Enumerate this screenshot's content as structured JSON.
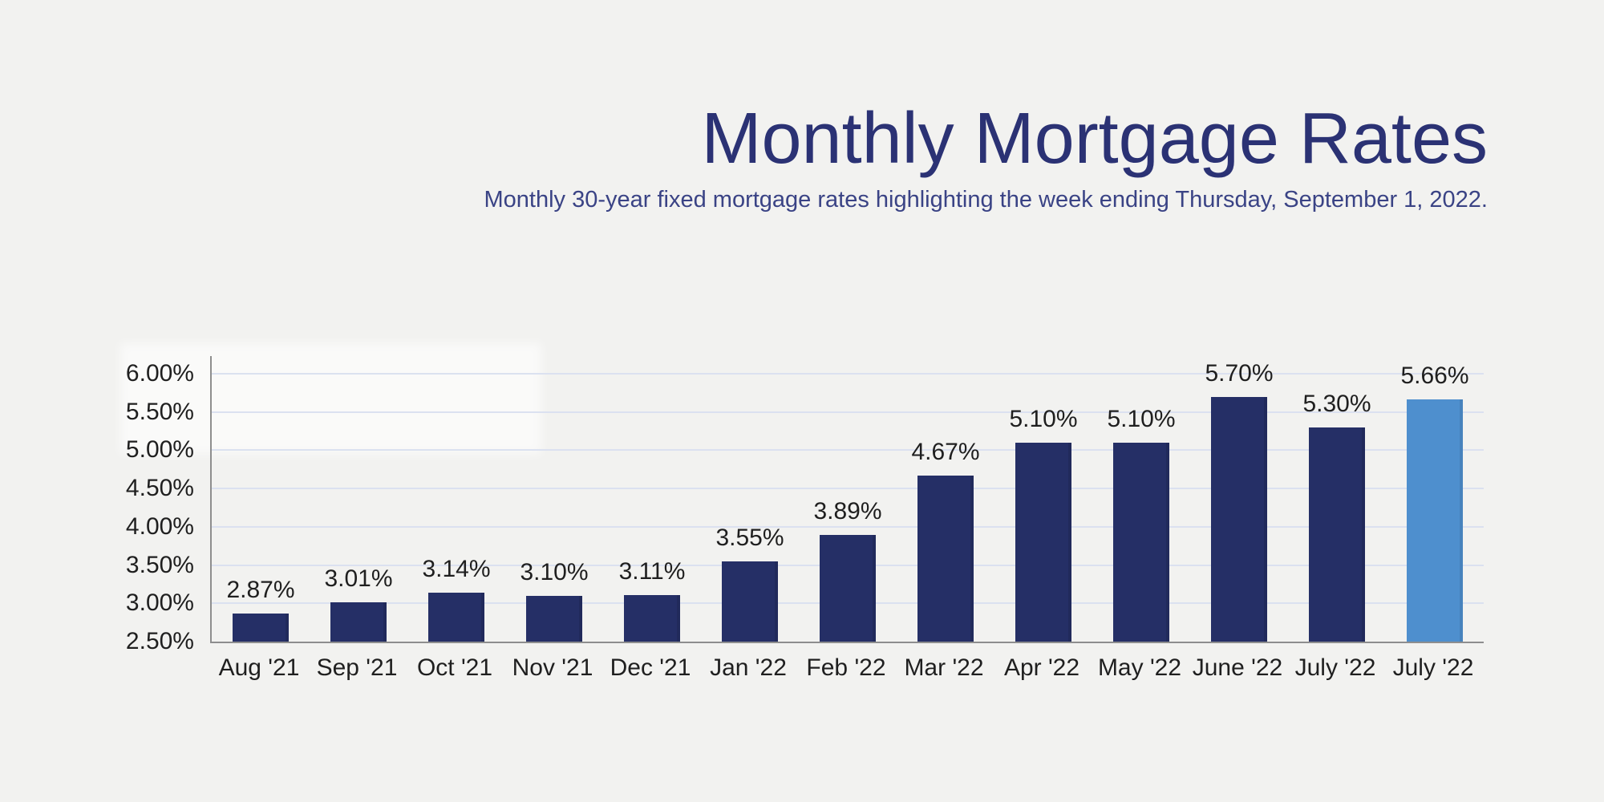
{
  "header": {
    "title": "Monthly Mortgage Rates",
    "subtitle": "Monthly 30-year fixed mortgage rates highlighting the week ending Thursday, September 1, 2022."
  },
  "chart_data": {
    "type": "bar",
    "title": "Monthly Mortgage Rates",
    "subtitle": "Monthly 30-year fixed mortgage rates highlighting the week ending Thursday, September 1, 2022.",
    "categories": [
      "Aug '21",
      "Sep '21",
      "Oct '21",
      "Nov '21",
      "Dec '21",
      "Jan '22",
      "Feb '22",
      "Mar '22",
      "Apr '22",
      "May '22",
      "June '22",
      "July '22",
      "July '22"
    ],
    "values": [
      2.87,
      3.01,
      3.14,
      3.1,
      3.11,
      3.55,
      3.89,
      4.67,
      5.1,
      5.1,
      5.7,
      5.3,
      5.66
    ],
    "value_labels": [
      "2.87%",
      "3.01%",
      "3.14%",
      "3.10%",
      "3.11%",
      "3.55%",
      "3.89%",
      "4.67%",
      "5.10%",
      "5.10%",
      "5.70%",
      "5.30%",
      "5.66%"
    ],
    "highlighted_index": 12,
    "xlabel": "",
    "ylabel": "",
    "ylim": [
      2.5,
      6.25
    ],
    "yticks": [
      {
        "value": 6.0,
        "label": "6.00%"
      },
      {
        "value": 5.5,
        "label": "5.50%"
      },
      {
        "value": 5.0,
        "label": "5.00%"
      },
      {
        "value": 4.5,
        "label": "4.50%"
      },
      {
        "value": 4.0,
        "label": "4.00%"
      },
      {
        "value": 3.5,
        "label": "3.50%"
      },
      {
        "value": 3.0,
        "label": "3.00%"
      },
      {
        "value": 2.5,
        "label": "2.50%"
      }
    ],
    "grid": true,
    "legend": null,
    "colors": {
      "background": "#F2F2F0",
      "bar": "#252F66",
      "highlight_bar": "#4E8FCE",
      "gridline": "#DBE1F0",
      "axis_line": "#8E8E8E",
      "tick_label": "#1F1F1F",
      "title": "#2B3274",
      "subtitle": "#3A4385"
    }
  }
}
